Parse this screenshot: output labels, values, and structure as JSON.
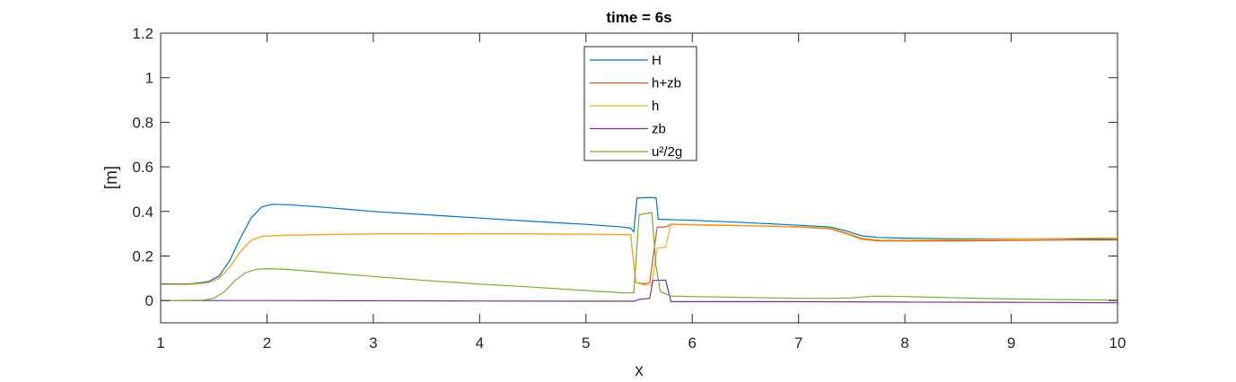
{
  "chart_data": {
    "type": "line",
    "title": "time = 6s",
    "xlabel": "x",
    "ylabel": "[m]",
    "xlim": [
      1,
      10
    ],
    "ylim": [
      -0.1,
      1.2
    ],
    "xticks": [
      "1",
      "2",
      "3",
      "4",
      "5",
      "6",
      "7",
      "8",
      "9",
      "10"
    ],
    "yticks": [
      "0",
      "0.2",
      "0.4",
      "0.6",
      "0.8",
      "1",
      "1.2"
    ],
    "grid": false,
    "legend_position": "top-center",
    "series": [
      {
        "name": "H",
        "color": "#0072BD",
        "points": [
          [
            1,
            0.075
          ],
          [
            1.3,
            0.076
          ],
          [
            1.45,
            0.085
          ],
          [
            1.55,
            0.11
          ],
          [
            1.65,
            0.18
          ],
          [
            1.75,
            0.28
          ],
          [
            1.85,
            0.37
          ],
          [
            1.95,
            0.42
          ],
          [
            2.05,
            0.432
          ],
          [
            2.2,
            0.43
          ],
          [
            2.5,
            0.42
          ],
          [
            3,
            0.4
          ],
          [
            3.5,
            0.385
          ],
          [
            4,
            0.37
          ],
          [
            4.5,
            0.355
          ],
          [
            5,
            0.342
          ],
          [
            5.35,
            0.33
          ],
          [
            5.42,
            0.325
          ],
          [
            5.45,
            0.308
          ],
          [
            5.48,
            0.46
          ],
          [
            5.62,
            0.463
          ],
          [
            5.66,
            0.46
          ],
          [
            5.68,
            0.365
          ],
          [
            6,
            0.36
          ],
          [
            6.5,
            0.35
          ],
          [
            7,
            0.338
          ],
          [
            7.3,
            0.33
          ],
          [
            7.45,
            0.312
          ],
          [
            7.6,
            0.29
          ],
          [
            7.75,
            0.283
          ],
          [
            8,
            0.28
          ],
          [
            8.5,
            0.277
          ],
          [
            9,
            0.277
          ],
          [
            9.5,
            0.277
          ],
          [
            10,
            0.275
          ]
        ]
      },
      {
        "name": "h+zb",
        "color": "#D95319",
        "points": [
          [
            1,
            0.072
          ],
          [
            1.3,
            0.073
          ],
          [
            1.45,
            0.08
          ],
          [
            1.55,
            0.1
          ],
          [
            1.65,
            0.15
          ],
          [
            1.75,
            0.22
          ],
          [
            1.85,
            0.27
          ],
          [
            1.95,
            0.288
          ],
          [
            2.1,
            0.292
          ],
          [
            2.5,
            0.296
          ],
          [
            3,
            0.299
          ],
          [
            3.5,
            0.3
          ],
          [
            4,
            0.3
          ],
          [
            4.5,
            0.299
          ],
          [
            5,
            0.297
          ],
          [
            5.42,
            0.296
          ],
          [
            5.47,
            0.08
          ],
          [
            5.55,
            0.075
          ],
          [
            5.6,
            0.08
          ],
          [
            5.67,
            0.33
          ],
          [
            5.72,
            0.33
          ],
          [
            5.76,
            0.332
          ],
          [
            5.8,
            0.342
          ],
          [
            6.2,
            0.338
          ],
          [
            6.6,
            0.335
          ],
          [
            7,
            0.33
          ],
          [
            7.3,
            0.322
          ],
          [
            7.45,
            0.3
          ],
          [
            7.6,
            0.275
          ],
          [
            7.75,
            0.268
          ],
          [
            8,
            0.267
          ],
          [
            8.5,
            0.268
          ],
          [
            9,
            0.27
          ],
          [
            9.5,
            0.271
          ],
          [
            10,
            0.272
          ]
        ]
      },
      {
        "name": "h",
        "color": "#EDB120",
        "points": [
          [
            1,
            0.072
          ],
          [
            1.3,
            0.073
          ],
          [
            1.45,
            0.08
          ],
          [
            1.55,
            0.1
          ],
          [
            1.65,
            0.15
          ],
          [
            1.75,
            0.22
          ],
          [
            1.85,
            0.27
          ],
          [
            1.95,
            0.288
          ],
          [
            2.1,
            0.292
          ],
          [
            2.5,
            0.296
          ],
          [
            3,
            0.299
          ],
          [
            3.5,
            0.3
          ],
          [
            4,
            0.3
          ],
          [
            4.5,
            0.299
          ],
          [
            5,
            0.297
          ],
          [
            5.42,
            0.296
          ],
          [
            5.47,
            0.08
          ],
          [
            5.55,
            0.07
          ],
          [
            5.62,
            0.07
          ],
          [
            5.67,
            0.235
          ],
          [
            5.75,
            0.24
          ],
          [
            5.8,
            0.343
          ],
          [
            6.2,
            0.34
          ],
          [
            6.6,
            0.336
          ],
          [
            7,
            0.332
          ],
          [
            7.3,
            0.325
          ],
          [
            7.45,
            0.304
          ],
          [
            7.6,
            0.28
          ],
          [
            7.75,
            0.272
          ],
          [
            8,
            0.271
          ],
          [
            8.5,
            0.273
          ],
          [
            9,
            0.276
          ],
          [
            9.5,
            0.279
          ],
          [
            10,
            0.282
          ]
        ]
      },
      {
        "name": "zb",
        "color": "#7E2F8E",
        "points": [
          [
            1,
            0
          ],
          [
            2,
            0
          ],
          [
            3,
            -0.001
          ],
          [
            4,
            -0.002
          ],
          [
            5,
            -0.003
          ],
          [
            5.45,
            -0.003
          ],
          [
            5.5,
            0.005
          ],
          [
            5.6,
            0.01
          ],
          [
            5.63,
            0.09
          ],
          [
            5.75,
            0.092
          ],
          [
            5.8,
            -0.005
          ],
          [
            6.5,
            -0.005
          ],
          [
            7,
            -0.005
          ],
          [
            7.5,
            -0.006
          ],
          [
            8,
            -0.007
          ],
          [
            9,
            -0.008
          ],
          [
            10,
            -0.01
          ]
        ]
      },
      {
        "name": "u²/2g",
        "color": "#77AC30",
        "points": [
          [
            1,
            0
          ],
          [
            1.4,
            0.002
          ],
          [
            1.5,
            0.01
          ],
          [
            1.6,
            0.04
          ],
          [
            1.7,
            0.09
          ],
          [
            1.8,
            0.125
          ],
          [
            1.9,
            0.14
          ],
          [
            2,
            0.143
          ],
          [
            2.2,
            0.14
          ],
          [
            2.5,
            0.128
          ],
          [
            3,
            0.108
          ],
          [
            3.5,
            0.09
          ],
          [
            4,
            0.074
          ],
          [
            4.5,
            0.06
          ],
          [
            5,
            0.045
          ],
          [
            5.35,
            0.035
          ],
          [
            5.45,
            0.035
          ],
          [
            5.5,
            0.385
          ],
          [
            5.62,
            0.395
          ],
          [
            5.66,
            0.15
          ],
          [
            5.7,
            0.04
          ],
          [
            5.8,
            0.02
          ],
          [
            6,
            0.018
          ],
          [
            6.5,
            0.014
          ],
          [
            7,
            0.01
          ],
          [
            7.3,
            0.01
          ],
          [
            7.5,
            0.012
          ],
          [
            7.7,
            0.02
          ],
          [
            8,
            0.018
          ],
          [
            8.5,
            0.012
          ],
          [
            9,
            0.007
          ],
          [
            9.5,
            0.004
          ],
          [
            10,
            0.002
          ]
        ]
      }
    ]
  }
}
